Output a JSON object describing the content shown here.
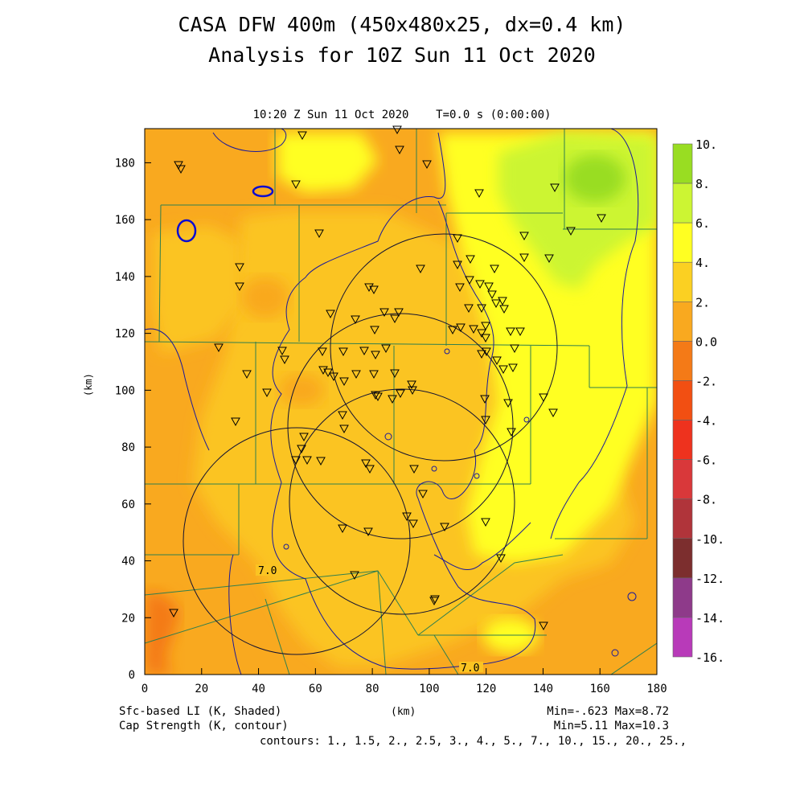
{
  "header": {
    "title_line1": "CASA DFW 400m (450x480x25, dx=0.4 km)",
    "title_line2": "Analysis for 10Z Sun 11 Oct 2020",
    "subtitle": "10:20 Z Sun 11 Oct 2020    T=0.0 s (0:00:00)"
  },
  "axes": {
    "x_label": "(km)",
    "y_label": "(km)",
    "x_ticks": [
      "0",
      "20",
      "40",
      "60",
      "80",
      "100",
      "120",
      "140",
      "160",
      "180"
    ],
    "y_ticks": [
      "0",
      "20",
      "40",
      "60",
      "80",
      "100",
      "120",
      "140",
      "160",
      "180"
    ],
    "x_range": [
      0,
      180
    ],
    "y_range": [
      0,
      192
    ]
  },
  "colorbar": {
    "labels": [
      "10.",
      "8.",
      "6.",
      "4.",
      "2.",
      "0.0",
      "-2.",
      "-4.",
      "-6.",
      "-8.",
      "-10.",
      "-12.",
      "-14.",
      "-16."
    ],
    "colors": [
      "#99dd22",
      "#ccf533",
      "#ffff22",
      "#fbd022",
      "#f9a91f",
      "#f47a17",
      "#f24f12",
      "#ee321e",
      "#d9383a",
      "#b0343a",
      "#7c2e2e",
      "#8e3a8a",
      "#b83ab9",
      "#dd48e0"
    ]
  },
  "footer": {
    "left_line1": "Sfc-based LI (K, Shaded)",
    "left_line2": "Cap Strength (K, contour)",
    "right_line1": "Min=-.623 Max=8.72",
    "right_line2": "Min=5.11 Max=10.3",
    "right_line3": "contours: 1., 1.5, 2., 2.5, 3., 4., 5., 7., 10., 15., 20., 25.,"
  },
  "map": {
    "contour_labels": [
      "7.0",
      "7.0"
    ],
    "colors": {
      "county_lines": "#2f7f4f",
      "contours": "#1a1a9a",
      "radar_rings": "#111133",
      "field_orange": "#f9a91f",
      "field_gold": "#fbc422",
      "field_yellow": "#ffff22",
      "field_lime": "#ccf533",
      "field_green": "#99dd22",
      "field_red": "#f47a17"
    },
    "station_marker": "down-triangle-icon"
  }
}
